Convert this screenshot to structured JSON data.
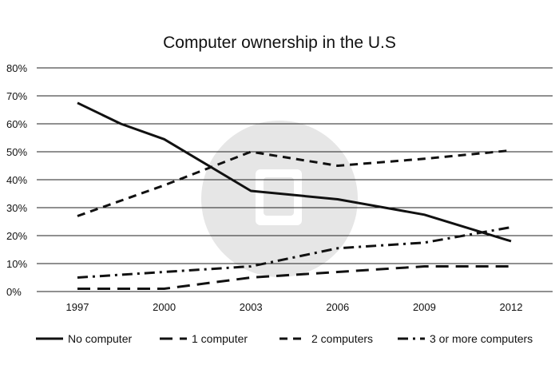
{
  "chart_data": {
    "type": "line",
    "title": "Computer ownership in the U.S",
    "xlabel": "",
    "ylabel": "",
    "x": [
      "1997",
      "2000",
      "2003",
      "2006",
      "2009",
      "2012"
    ],
    "ylim": [
      0,
      80
    ],
    "yticks": [
      "0%",
      "10%",
      "20%",
      "30%",
      "40%",
      "50%",
      "60%",
      "70%",
      "80%"
    ],
    "grid": true,
    "legend_position": "bottom",
    "series": [
      {
        "name": "No computer",
        "style": "solid",
        "points": [
          [
            1997,
            67.5
          ],
          [
            1998.5,
            60
          ],
          [
            2000,
            54.5
          ],
          [
            2003,
            36
          ],
          [
            2006,
            33
          ],
          [
            2009,
            27.5
          ],
          [
            2012,
            18
          ]
        ]
      },
      {
        "name": "1 computer",
        "style": "dash",
        "points": [
          [
            1997,
            1
          ],
          [
            2000,
            1
          ],
          [
            2003,
            5
          ],
          [
            2006,
            7
          ],
          [
            2009,
            9
          ],
          [
            2012,
            9
          ]
        ]
      },
      {
        "name": "2 computers",
        "style": "dash-short",
        "points": [
          [
            1997,
            27
          ],
          [
            2000,
            38
          ],
          [
            2003,
            50
          ],
          [
            2006,
            45
          ],
          [
            2009,
            47.5
          ],
          [
            2012,
            50.5
          ]
        ]
      },
      {
        "name": "3 or more computers",
        "style": "dash-dot",
        "points": [
          [
            1997,
            5
          ],
          [
            2000,
            7
          ],
          [
            2003,
            9
          ],
          [
            2006,
            15.5
          ],
          [
            2009,
            17.5
          ],
          [
            2012,
            23
          ]
        ]
      }
    ]
  }
}
